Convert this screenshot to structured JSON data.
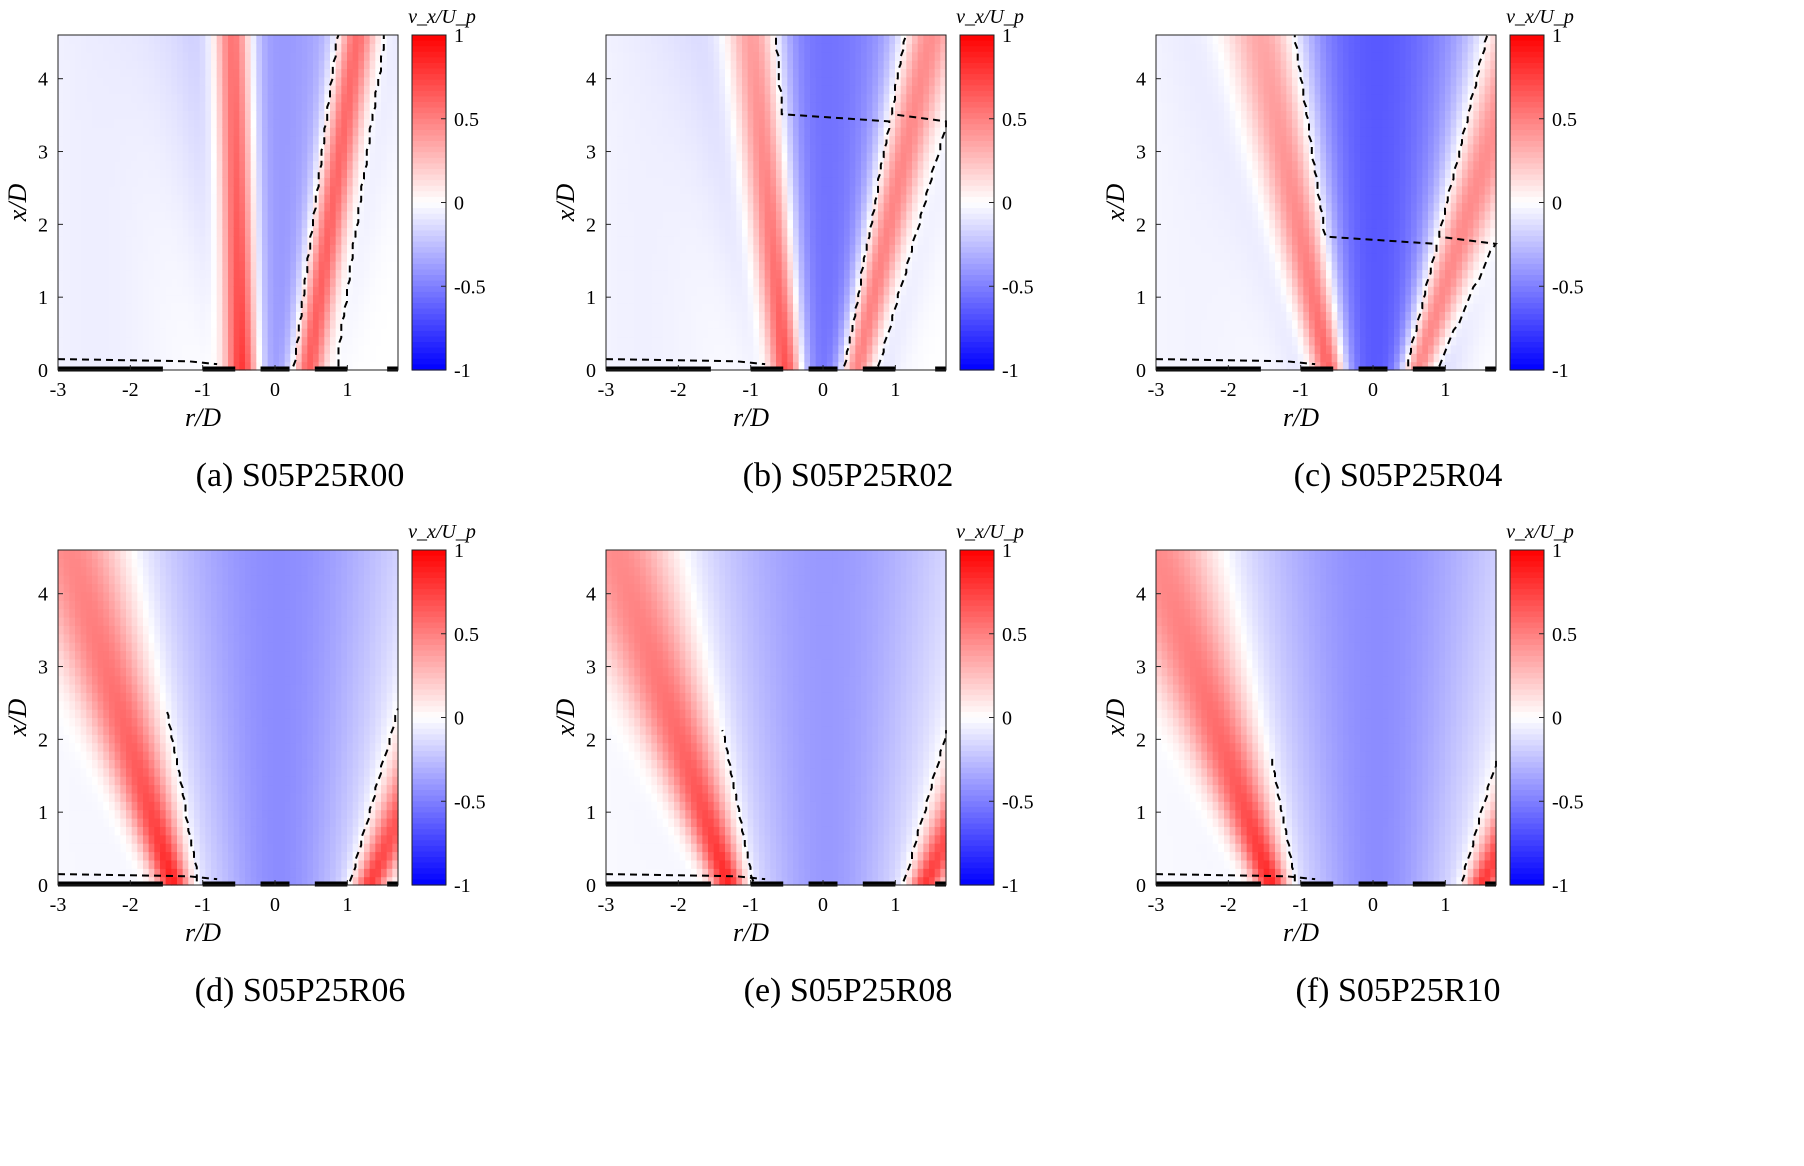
{
  "figure": {
    "colorbar": {
      "label": "v_x/U_p",
      "ticks": [
        "1",
        "0.5",
        "0",
        "-0.5",
        "-1"
      ],
      "range": [
        -1,
        1
      ],
      "colors": {
        "positive": "#ff0000",
        "zero": "#ffffff",
        "negative": "#0000ff"
      }
    },
    "axes": {
      "xlabel": "r/D",
      "ylabel": "x/D",
      "xticks": [
        "-3",
        "-2",
        "-1",
        "0",
        "1"
      ],
      "yticks": [
        "0",
        "1",
        "2",
        "3",
        "4"
      ],
      "xlim": [
        -3,
        1.7
      ],
      "ylim": [
        0,
        4.6
      ]
    }
  },
  "chart_data": [
    {
      "type": "heatmap",
      "caption": "(a) S05P25R00",
      "case": "S05P25R00",
      "outer_jet_r": -0.45,
      "inner_jet_r": 0.45,
      "jet_angle": 0.05,
      "core_deficit": -0.4,
      "contour": "dashed v_x = 0"
    },
    {
      "type": "heatmap",
      "caption": "(b) S05P25R02",
      "case": "S05P25R02",
      "outer_jet_r": -0.5,
      "inner_jet_r": 0.45,
      "jet_angle": 0.18,
      "core_deficit": -0.55,
      "contour": "dashed v_x = 0"
    },
    {
      "type": "heatmap",
      "caption": "(c) S05P25R04",
      "case": "S05P25R04",
      "outer_jet_r": -0.6,
      "inner_jet_r": 0.6,
      "jet_angle": 0.35,
      "core_deficit": -0.65,
      "contour": "dashed v_x = 0"
    },
    {
      "type": "heatmap",
      "caption": "(d) S05P25R06",
      "case": "S05P25R06",
      "outer_jet_r": -1.4,
      "inner_jet_r": 1.3,
      "jet_angle": 0.55,
      "core_deficit": -0.45,
      "contour": "dashed v_x = 0"
    },
    {
      "type": "heatmap",
      "caption": "(e) S05P25R08",
      "case": "S05P25R08",
      "outer_jet_r": -1.3,
      "inner_jet_r": 1.4,
      "jet_angle": 0.6,
      "core_deficit": -0.4,
      "contour": "dashed v_x = 0"
    },
    {
      "type": "heatmap",
      "caption": "(f) S05P25R10",
      "case": "S05P25R10",
      "outer_jet_r": -1.4,
      "inner_jet_r": 1.5,
      "jet_angle": 0.62,
      "core_deficit": -0.45,
      "contour": "dashed v_x = 0"
    }
  ]
}
